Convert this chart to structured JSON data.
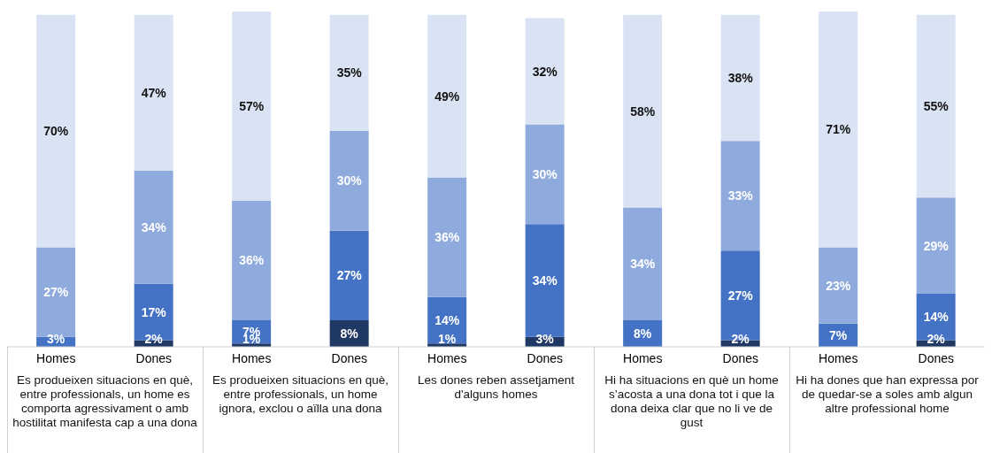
{
  "chart_data": {
    "type": "bar",
    "stacked": true,
    "categories": [
      "Homes",
      "Dones",
      "Homes",
      "Dones",
      "Homes",
      "Dones",
      "Homes",
      "Dones",
      "Homes",
      "Dones"
    ],
    "series": [
      {
        "color": "#203864",
        "values": [
          null,
          2,
          1,
          8,
          1,
          3,
          null,
          2,
          null,
          2
        ],
        "value_labels": [
          null,
          "2%",
          "1%",
          "8%",
          "1%",
          "3%",
          null,
          "2%",
          null,
          "2%"
        ]
      },
      {
        "color": "#4472c4",
        "values": [
          3,
          17,
          7,
          27,
          14,
          34,
          8,
          27,
          7,
          14
        ],
        "value_labels": [
          "3%",
          "17%",
          "7%",
          "27%",
          "14%",
          "34%",
          "8%",
          "27%",
          "7%",
          "14%"
        ]
      },
      {
        "color": "#8faadc",
        "values": [
          27,
          34,
          36,
          30,
          36,
          30,
          34,
          33,
          23,
          29
        ],
        "value_labels": [
          "27%",
          "34%",
          "36%",
          "30%",
          "36%",
          "30%",
          "34%",
          "33%",
          "23%",
          "29%"
        ]
      },
      {
        "color": "#dae3f3",
        "values": [
          70,
          47,
          57,
          35,
          49,
          32,
          58,
          38,
          71,
          55
        ],
        "value_labels": [
          "70%",
          "47%",
          "57%",
          "35%",
          "49%",
          "32%",
          "58%",
          "38%",
          "71%",
          "55%"
        ]
      }
    ],
    "ylim": [
      0,
      101
    ],
    "tick_labels": "x",
    "grid": false,
    "legend": false,
    "annotations": [
      "Es produeixen situacions en què, entre professionals, un home es comporta agressivament o amb hostilitat manifesta cap a una dona",
      "Es produeixen situacions en què, entre professionals, un home ignora, exclou o aïlla una dona",
      "Les dones reben assetjament d'alguns homes",
      "Hi ha situacions en què un home s’acosta a una dona tot i que la dona deixa clar que no li ve de gust",
      "Hi ha dones que han expressa por de quedar-se a soles amb algun altre professional home"
    ]
  }
}
